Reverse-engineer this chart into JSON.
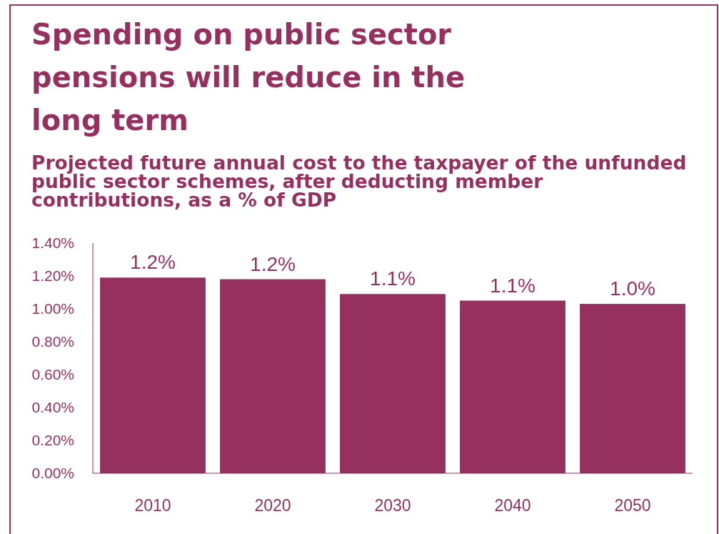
{
  "chart_data": {
    "type": "bar",
    "title": "Spending on public sector\npensions will reduce in the\nlong term",
    "subtitle": "Projected future annual cost to the taxpayer of the unfunded\npublic sector schemes, after deducting member\ncontributions, as a % of GDP",
    "categories": [
      "2010",
      "2020",
      "2030",
      "2040",
      "2050"
    ],
    "values": [
      1.19,
      1.18,
      1.09,
      1.05,
      1.03
    ],
    "value_labels": [
      "1.2%",
      "1.2%",
      "1.1%",
      "1.1%",
      "1.0%"
    ],
    "color": "#95305f",
    "ylim": [
      0,
      1.4
    ],
    "yticks": [
      {
        "value": 0,
        "label": "0.00%"
      },
      {
        "value": 0.2,
        "label": "0.20%"
      },
      {
        "value": 0.4,
        "label": "0.40%"
      },
      {
        "value": 0.6,
        "label": "0.60%"
      },
      {
        "value": 0.8,
        "label": "0.80%"
      },
      {
        "value": 1,
        "label": "1.00%"
      },
      {
        "value": 1.2,
        "label": "1.20%"
      },
      {
        "value": 1.4,
        "label": "1.40%"
      }
    ],
    "grid": false
  }
}
